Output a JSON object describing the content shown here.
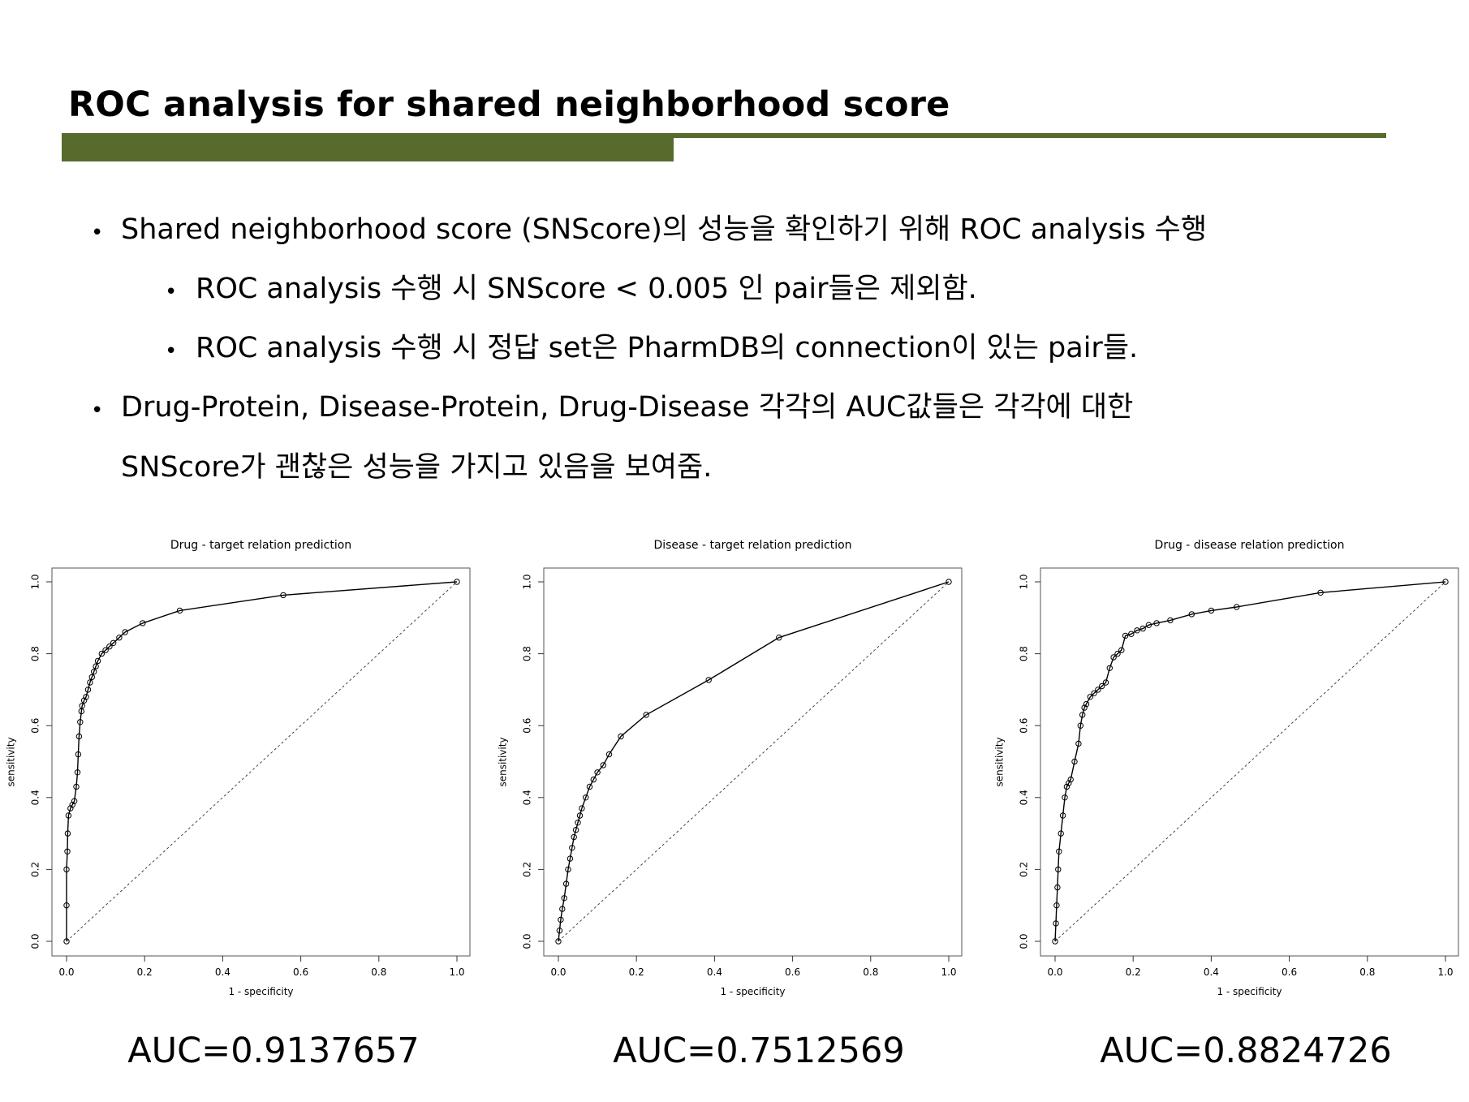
{
  "slide": {
    "title": "ROC analysis for shared neighborhood score",
    "accent_color": "#566b2c",
    "bullets": [
      {
        "level": 1,
        "text": "Shared neighborhood score (SNScore)의 성능을 확인하기 위해 ROC analysis 수행"
      },
      {
        "level": 2,
        "text": "ROC analysis 수행 시 SNScore < 0.005 인 pair들은 제외함."
      },
      {
        "level": 2,
        "text": "ROC analysis 수행 시 정답 set은 PharmDB의 connection이 있는 pair들."
      },
      {
        "level": 1,
        "text": "Drug-Protein, Disease-Protein, Drug-Disease 각각의 AUC값들은 각각에 대한"
      },
      {
        "level": 0,
        "text": "SNScore가 괜찮은 성능을 가지고 있음을 보여줌."
      }
    ]
  },
  "chart_data": [
    {
      "type": "line",
      "title": "Drug - target relation prediction",
      "xlabel": "1 - specificity",
      "ylabel": "sensitivity",
      "xlim": [
        0,
        1
      ],
      "ylim": [
        0,
        1
      ],
      "xticks": [
        "0.0",
        "0.2",
        "0.4",
        "0.6",
        "0.8",
        "1.0"
      ],
      "yticks": [
        "0.0",
        "0.2",
        "0.4",
        "0.6",
        "0.8",
        "1.0"
      ],
      "reference_line": "diagonal dashed",
      "x": [
        0.0,
        0.0,
        0.0,
        0.002,
        0.003,
        0.005,
        0.01,
        0.015,
        0.02,
        0.025,
        0.028,
        0.03,
        0.032,
        0.035,
        0.038,
        0.04,
        0.045,
        0.05,
        0.055,
        0.06,
        0.065,
        0.07,
        0.075,
        0.08,
        0.09,
        0.1,
        0.11,
        0.12,
        0.135,
        0.15,
        0.195,
        0.29,
        0.555,
        1.0
      ],
      "y": [
        0.0,
        0.1,
        0.2,
        0.25,
        0.3,
        0.35,
        0.37,
        0.38,
        0.39,
        0.43,
        0.47,
        0.52,
        0.57,
        0.61,
        0.64,
        0.655,
        0.67,
        0.68,
        0.7,
        0.72,
        0.735,
        0.75,
        0.765,
        0.78,
        0.8,
        0.81,
        0.82,
        0.83,
        0.845,
        0.86,
        0.885,
        0.92,
        0.963,
        1.0
      ],
      "auc_label": "AUC=0.9137657"
    },
    {
      "type": "line",
      "title": "Disease - target relation prediction",
      "xlabel": "1 - specificity",
      "ylabel": "sensitivity",
      "xlim": [
        0,
        1
      ],
      "ylim": [
        0,
        1
      ],
      "xticks": [
        "0.0",
        "0.2",
        "0.4",
        "0.6",
        "0.8",
        "1.0"
      ],
      "yticks": [
        "0.0",
        "0.2",
        "0.4",
        "0.6",
        "0.8",
        "1.0"
      ],
      "reference_line": "diagonal dashed",
      "x": [
        0.0,
        0.003,
        0.006,
        0.01,
        0.015,
        0.02,
        0.025,
        0.03,
        0.035,
        0.04,
        0.045,
        0.05,
        0.055,
        0.06,
        0.07,
        0.08,
        0.09,
        0.1,
        0.115,
        0.13,
        0.16,
        0.225,
        0.385,
        0.565,
        1.0
      ],
      "y": [
        0.0,
        0.03,
        0.06,
        0.09,
        0.12,
        0.16,
        0.2,
        0.23,
        0.26,
        0.29,
        0.31,
        0.33,
        0.35,
        0.37,
        0.4,
        0.43,
        0.45,
        0.47,
        0.49,
        0.52,
        0.57,
        0.63,
        0.727,
        0.845,
        1.0
      ],
      "auc_label": "AUC=0.7512569"
    },
    {
      "type": "line",
      "title": "Drug - disease relation prediction",
      "xlabel": "1 - specificity",
      "ylabel": "sensitivity",
      "xlim": [
        0,
        1
      ],
      "ylim": [
        0,
        1
      ],
      "xticks": [
        "0.0",
        "0.2",
        "0.4",
        "0.6",
        "0.8",
        "1.0"
      ],
      "yticks": [
        "0.0",
        "0.2",
        "0.4",
        "0.6",
        "0.8",
        "1.0"
      ],
      "reference_line": "diagonal dashed",
      "x": [
        0.0,
        0.002,
        0.004,
        0.006,
        0.008,
        0.01,
        0.015,
        0.02,
        0.025,
        0.03,
        0.035,
        0.04,
        0.05,
        0.06,
        0.065,
        0.07,
        0.075,
        0.08,
        0.09,
        0.1,
        0.11,
        0.12,
        0.13,
        0.14,
        0.15,
        0.16,
        0.17,
        0.18,
        0.195,
        0.21,
        0.225,
        0.24,
        0.26,
        0.295,
        0.35,
        0.4,
        0.465,
        0.68,
        1.0
      ],
      "y": [
        0.0,
        0.05,
        0.1,
        0.15,
        0.2,
        0.25,
        0.3,
        0.35,
        0.4,
        0.43,
        0.44,
        0.45,
        0.5,
        0.55,
        0.6,
        0.63,
        0.65,
        0.66,
        0.68,
        0.69,
        0.7,
        0.71,
        0.72,
        0.76,
        0.79,
        0.8,
        0.81,
        0.85,
        0.855,
        0.865,
        0.87,
        0.88,
        0.885,
        0.893,
        0.91,
        0.92,
        0.93,
        0.97,
        1.0
      ],
      "auc_label": "AUC=0.8824726"
    }
  ]
}
